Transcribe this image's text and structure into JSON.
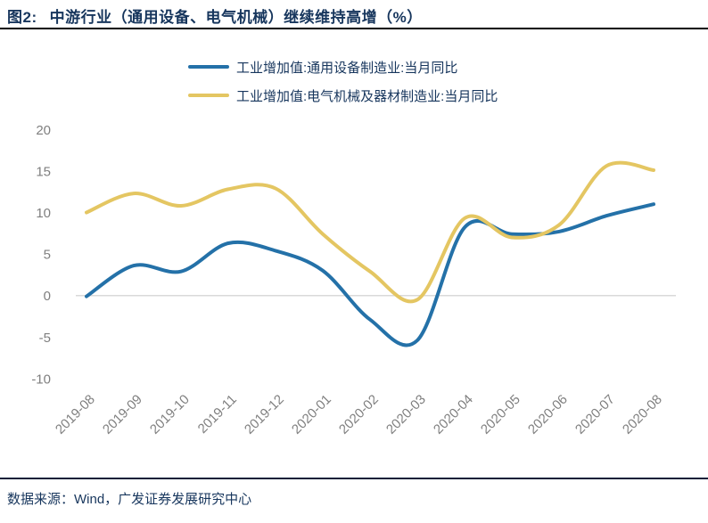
{
  "figure": {
    "title_prefix": "图2:",
    "title": "中游行业（通用设备、电气机械）继续维持高增（%）",
    "source": "数据来源：Wind，广发证券发展研究中心"
  },
  "colors": {
    "title_text": "#17365d",
    "legend_text": "#17365d",
    "source_text": "#17365d",
    "axis_label": "#7f7f7f",
    "zero_gridline": "#d9d9d9",
    "series_blue": "#2471a8",
    "series_yellow": "#e4c662"
  },
  "chart_data": {
    "type": "line",
    "title": "中游行业（通用设备、电气机械）继续维持高增（%）",
    "xlabel": "",
    "ylabel": "",
    "categories": [
      "2019-08",
      "2019-09",
      "2019-10",
      "2019-11",
      "2019-12",
      "2020-01",
      "2020-02",
      "2020-03",
      "2020-04",
      "2020-05",
      "2020-06",
      "2020-07",
      "2020-08"
    ],
    "series": [
      {
        "name": "工业增加值:通用设备制造业:当月同比",
        "color_key": "series_blue",
        "values": [
          -0.1,
          3.6,
          2.9,
          6.3,
          5.4,
          3.0,
          -2.9,
          -5.4,
          8.2,
          7.4,
          7.7,
          9.6,
          11.0
        ]
      },
      {
        "name": "工业增加值:电气机械及器材制造业:当月同比",
        "color_key": "series_yellow",
        "values": [
          10.0,
          12.3,
          10.8,
          12.8,
          12.9,
          7.4,
          2.9,
          -0.5,
          9.3,
          7.0,
          8.5,
          15.6,
          15.1
        ]
      }
    ],
    "ylim": [
      -10,
      20
    ],
    "yticks": [
      20,
      15,
      10,
      5,
      0,
      -5,
      -10
    ],
    "grid": "horizontal zero-line only",
    "line_style": "smoothed",
    "legend_position": "top"
  }
}
